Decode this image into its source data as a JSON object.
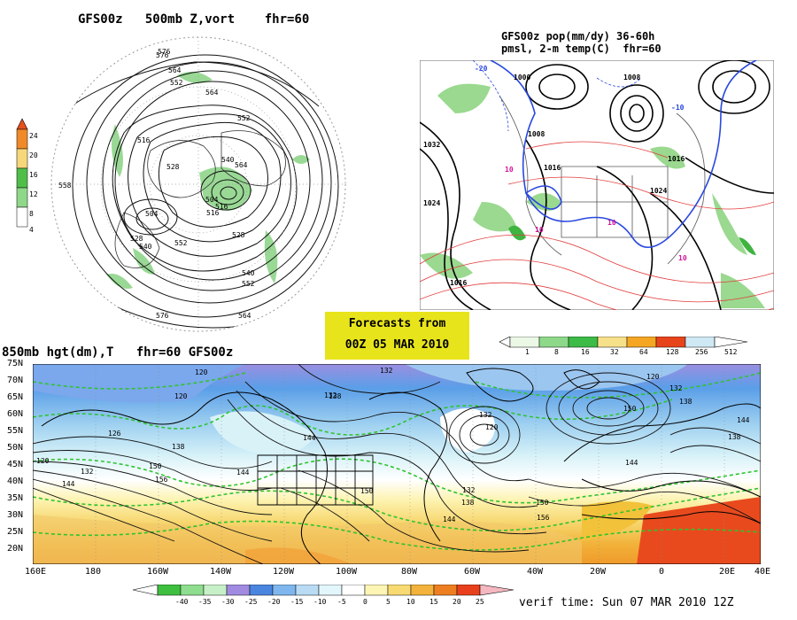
{
  "panels": {
    "polar": {
      "title": "GFS00z   500mb Z,vort    fhr=60",
      "colorbar_labels": [
        "24",
        "20",
        "16",
        "12",
        "8",
        "4"
      ],
      "contour_labels": [
        "576",
        "564",
        "552",
        "516",
        "528",
        "540",
        "504",
        "516",
        "552",
        "564",
        "576",
        "558",
        "528",
        "540",
        "552",
        "564",
        "516",
        "504",
        "528",
        "552",
        "540",
        "564",
        "576"
      ]
    },
    "precip": {
      "title_line1": "GFS00z pop(mm/dy) 36-60h",
      "title_line2": "pmsl, 2-m temp(C)  fhr=60",
      "colorbar_labels": [
        "1",
        "8",
        "16",
        "32",
        "64",
        "128",
        "256",
        "512"
      ],
      "pressure_labels": [
        "1032",
        "1024",
        "1016",
        "1000",
        "1008",
        "1016",
        "1008",
        "1024",
        "1016"
      ],
      "temp_labels": [
        "10",
        "10",
        "10",
        "10",
        "-20",
        "-10"
      ]
    },
    "hgt850": {
      "title": "850mb hgt(dm),T   fhr=60 GFS00z",
      "lat_labels": [
        "75N",
        "70N",
        "65N",
        "60N",
        "55N",
        "50N",
        "45N",
        "40N",
        "35N",
        "30N",
        "25N",
        "20N"
      ],
      "lon_labels": [
        "160E",
        "180",
        "160W",
        "140W",
        "120W",
        "100W",
        "80W",
        "60W",
        "40W",
        "20W",
        "0",
        "20E",
        "40E"
      ],
      "contour_labels": [
        "120",
        "132",
        "120",
        "126",
        "138",
        "144",
        "132",
        "138",
        "144",
        "150",
        "156",
        "120",
        "132",
        "144",
        "150",
        "132",
        "138",
        "120",
        "132",
        "144",
        "156",
        "150",
        "138",
        "144",
        "150",
        "144",
        "138",
        "132",
        "120"
      ],
      "colorbar_labels": [
        "-40",
        "-35",
        "-30",
        "-25",
        "-20",
        "-15",
        "-10",
        "-5",
        "0",
        "5",
        "10",
        "15",
        "20",
        "25"
      ]
    }
  },
  "stamp": {
    "line1": "Forecasts from",
    "line2": "00Z 05 MAR 2010"
  },
  "verif_time": "verif time: Sun 07 MAR 2010 12Z"
}
